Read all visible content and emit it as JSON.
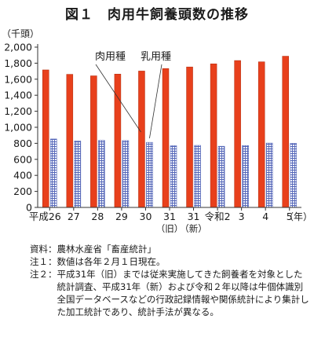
{
  "figure": {
    "title": "図１　肉用牛飼養頭数の推移",
    "unit_label": "（千頭）",
    "year_suffix": "（年）"
  },
  "chart_data": {
    "type": "bar",
    "categories": [
      "平成26",
      "27",
      "28",
      "29",
      "30",
      "31",
      "31",
      "令和2",
      "3",
      "4",
      "5"
    ],
    "category_sublabels": [
      "",
      "",
      "",
      "",
      "",
      "（旧）",
      "（新）",
      "",
      "",
      "",
      ""
    ],
    "series": [
      {
        "name": "肉用種",
        "values": [
          1716,
          1661,
          1642,
          1664,
          1702,
          1733,
          1753,
          1792,
          1833,
          1817,
          1887
        ],
        "color": "#e8401c"
      },
      {
        "name": "乳用種",
        "values": [
          854,
          829,
          836,
          834,
          812,
          770,
          774,
          763,
          772,
          803,
          800
        ],
        "color": "#5567b8"
      }
    ],
    "ylim": [
      0,
      2000
    ],
    "yticks": [
      0,
      200,
      400,
      600,
      800,
      1000,
      1200,
      1400,
      1600,
      1800,
      2000
    ],
    "legend_placement": "top-center"
  },
  "notes": [
    {
      "key": "資料：",
      "text": "農林水産省「畜産統計」"
    },
    {
      "key": "注１：",
      "text": "数値は各年２月１日現在。"
    },
    {
      "key": "注２：",
      "text": "平成31年（旧）までは従来実施してきた飼養者を対象とした統計調査、平成31年（新）および令和２年以降は牛個体識別全国データベースなどの行政記録情報や関係統計により集計した加工統計であり、統計手法が異なる。"
    }
  ]
}
